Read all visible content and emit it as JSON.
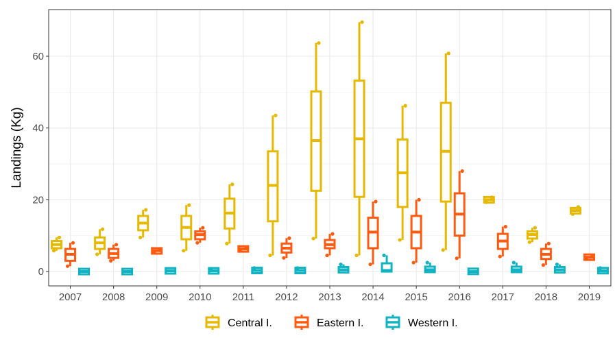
{
  "chart_data": {
    "type": "boxplot",
    "title": "",
    "xlabel": "",
    "ylabel": "Landings (Kg)",
    "categories": [
      "2007",
      "2008",
      "2009",
      "2010",
      "2011",
      "2012",
      "2013",
      "2014",
      "2015",
      "2016",
      "2017",
      "2018",
      "2019"
    ],
    "yticks": [
      0,
      20,
      40,
      60
    ],
    "ylim": [
      -4,
      73
    ],
    "grid": true,
    "legend_position": "bottom",
    "series": [
      {
        "name": "Central I.",
        "color": "#E6B800",
        "boxes": [
          {
            "min": 5.8,
            "q1": 6.5,
            "median": 7.5,
            "q3": 8.5,
            "max": 9.5,
            "points": [
              5.8,
              9.5
            ]
          },
          {
            "min": 4.8,
            "q1": 6.3,
            "median": 8.0,
            "q3": 9.5,
            "max": 11.8,
            "points": [
              4.8,
              11.8
            ]
          },
          {
            "min": 9.5,
            "q1": 11.5,
            "median": 13.5,
            "q3": 15.5,
            "max": 17.2,
            "points": [
              9.5,
              17.2
            ]
          },
          {
            "min": 5.8,
            "q1": 9.0,
            "median": 12.3,
            "q3": 15.5,
            "max": 18.5,
            "points": [
              5.8,
              18.5
            ]
          },
          {
            "min": 7.8,
            "q1": 12.0,
            "median": 16.3,
            "q3": 20.3,
            "max": 24.3,
            "points": [
              7.8,
              24.3
            ]
          },
          {
            "min": 4.5,
            "q1": 14.0,
            "median": 24.0,
            "q3": 33.5,
            "max": 43.5,
            "points": [
              4.5,
              43.5
            ]
          },
          {
            "min": 9.2,
            "q1": 22.5,
            "median": 36.5,
            "q3": 50.2,
            "max": 63.7,
            "points": [
              9.2,
              63.7
            ]
          },
          {
            "min": 4.5,
            "q1": 20.8,
            "median": 37.0,
            "q3": 53.2,
            "max": 69.5,
            "points": [
              4.5,
              69.5
            ]
          },
          {
            "min": 8.8,
            "q1": 18.0,
            "median": 27.5,
            "q3": 36.8,
            "max": 46.2,
            "points": [
              8.8,
              46.2
            ]
          },
          {
            "min": 6.0,
            "q1": 19.5,
            "median": 33.5,
            "q3": 47.0,
            "max": 60.8,
            "points": [
              6.0,
              60.8
            ]
          },
          {
            "min": 19.3,
            "q1": 19.6,
            "median": 20.0,
            "q3": 20.4,
            "max": 20.7,
            "points": [
              19.3,
              20.7
            ]
          },
          {
            "min": 8.2,
            "q1": 9.2,
            "median": 10.3,
            "q3": 11.2,
            "max": 12.2,
            "points": [
              8.2,
              12.2
            ]
          },
          {
            "min": 16.0,
            "q1": 16.4,
            "median": 17.0,
            "q3": 17.5,
            "max": 18.0,
            "points": [
              16.0,
              18.0
            ]
          }
        ]
      },
      {
        "name": "Eastern I.",
        "color": "#FF5A0F",
        "boxes": [
          {
            "min": 1.5,
            "q1": 3.0,
            "median": 4.8,
            "q3": 6.3,
            "max": 8.0,
            "points": [
              1.5,
              8.0
            ]
          },
          {
            "min": 3.0,
            "q1": 3.8,
            "median": 5.0,
            "q3": 6.3,
            "max": 7.5,
            "points": [
              3.0,
              7.5
            ]
          },
          {
            "min": 5.3,
            "q1": 5.5,
            "median": 5.8,
            "q3": 6.0,
            "max": 6.3,
            "points": [
              5.3,
              6.3
            ]
          },
          {
            "min": 8.0,
            "q1": 9.0,
            "median": 10.3,
            "q3": 11.2,
            "max": 12.2,
            "points": [
              8.0,
              12.2
            ]
          },
          {
            "min": 6.1,
            "q1": 6.2,
            "median": 6.3,
            "q3": 6.4,
            "max": 6.5,
            "points": [
              6.1,
              6.5
            ]
          },
          {
            "min": 3.8,
            "q1": 5.3,
            "median": 6.5,
            "q3": 7.8,
            "max": 9.3,
            "points": [
              3.8,
              9.3
            ]
          },
          {
            "min": 4.5,
            "q1": 6.5,
            "median": 7.5,
            "q3": 8.8,
            "max": 10.5,
            "points": [
              4.5,
              10.5
            ]
          },
          {
            "min": 2.0,
            "q1": 6.5,
            "median": 11.0,
            "q3": 15.0,
            "max": 19.5,
            "points": [
              2.0,
              19.5
            ]
          },
          {
            "min": 2.5,
            "q1": 6.5,
            "median": 11.0,
            "q3": 15.5,
            "max": 20.0,
            "points": [
              2.5,
              20.0
            ]
          },
          {
            "min": 3.7,
            "q1": 10.0,
            "median": 16.0,
            "q3": 21.8,
            "max": 28.0,
            "points": [
              3.7,
              28.0
            ]
          },
          {
            "min": 4.2,
            "q1": 6.3,
            "median": 8.5,
            "q3": 10.5,
            "max": 12.5,
            "points": [
              4.2,
              12.5
            ]
          },
          {
            "min": 1.8,
            "q1": 3.5,
            "median": 4.8,
            "q3": 6.3,
            "max": 7.8,
            "points": [
              1.8,
              7.8
            ]
          },
          {
            "min": 3.8,
            "q1": 3.9,
            "median": 4.0,
            "q3": 4.1,
            "max": 4.2,
            "points": [
              3.8,
              4.2
            ]
          }
        ]
      },
      {
        "name": "Western I.",
        "color": "#10B3C2",
        "boxes": [
          {
            "min": -0.2,
            "q1": -0.1,
            "median": 0.0,
            "q3": 0.1,
            "max": 0.2,
            "points": []
          },
          {
            "min": -0.2,
            "q1": -0.1,
            "median": 0.0,
            "q3": 0.1,
            "max": 0.2,
            "points": []
          },
          {
            "min": 0.0,
            "q1": 0.1,
            "median": 0.2,
            "q3": 0.3,
            "max": 0.4,
            "points": []
          },
          {
            "min": -0.2,
            "q1": 0.0,
            "median": 0.2,
            "q3": 0.4,
            "max": 0.8,
            "points": [
              0.8
            ]
          },
          {
            "min": -0.2,
            "q1": 0.0,
            "median": 0.3,
            "q3": 0.6,
            "max": 1.0,
            "points": [
              1.0
            ]
          },
          {
            "min": -0.2,
            "q1": 0.0,
            "median": 0.3,
            "q3": 0.6,
            "max": 1.0,
            "points": [
              1.0
            ]
          },
          {
            "min": -0.2,
            "q1": 0.0,
            "median": 0.5,
            "q3": 1.0,
            "max": 2.0,
            "points": [
              2.0
            ]
          },
          {
            "min": -0.2,
            "q1": 0.0,
            "median": 0.3,
            "q3": 2.3,
            "max": 4.5,
            "points": [
              4.5
            ]
          },
          {
            "min": -0.2,
            "q1": 0.0,
            "median": 0.5,
            "q3": 1.2,
            "max": 2.5,
            "points": [
              2.5
            ]
          },
          {
            "min": -0.2,
            "q1": -0.1,
            "median": 0.0,
            "q3": 0.2,
            "max": 0.4,
            "points": []
          },
          {
            "min": -0.2,
            "q1": 0.0,
            "median": 0.5,
            "q3": 1.2,
            "max": 2.5,
            "points": [
              2.5
            ]
          },
          {
            "min": -0.2,
            "q1": 0.0,
            "median": 0.5,
            "q3": 1.0,
            "max": 2.0,
            "points": [
              2.0
            ]
          },
          {
            "min": -0.2,
            "q1": 0.0,
            "median": 0.2,
            "q3": 0.5,
            "max": 1.0,
            "points": [
              1.0
            ]
          }
        ]
      }
    ]
  }
}
